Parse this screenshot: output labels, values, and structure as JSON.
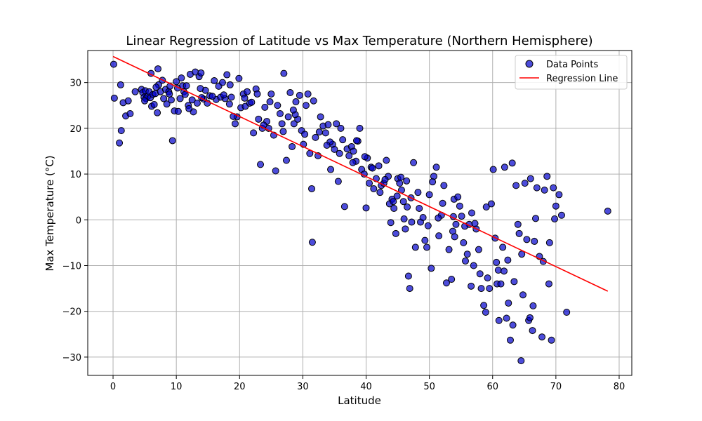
{
  "chart_data": {
    "type": "scatter",
    "title": "Linear Regression of Latitude vs Max Temperature (Northern Hemisphere)",
    "xlabel": "Latitude",
    "ylabel": "Max Temperature (°C)",
    "xlim": [
      -4,
      82
    ],
    "ylim": [
      -34,
      37
    ],
    "xticks": [
      0,
      10,
      20,
      30,
      40,
      50,
      60,
      70,
      80
    ],
    "yticks": [
      -30,
      -20,
      -10,
      0,
      10,
      20,
      30
    ],
    "grid": true,
    "legend_position": "top-right",
    "colors": {
      "points": "#0000cc",
      "point_edge": "#000000",
      "regression": "#ff0000",
      "grid": "#b0b0b0"
    },
    "series": [
      {
        "name": "Data Points",
        "kind": "scatter",
        "points": [
          [
            0.1,
            34.0
          ],
          [
            0.2,
            26.6
          ],
          [
            1.2,
            29.5
          ],
          [
            1.0,
            16.8
          ],
          [
            1.3,
            19.5
          ],
          [
            1.6,
            25.6
          ],
          [
            2.0,
            22.7
          ],
          [
            2.4,
            26.0
          ],
          [
            2.7,
            23.2
          ],
          [
            4.5,
            28.5
          ],
          [
            4.7,
            27.8
          ],
          [
            4.9,
            26.8
          ],
          [
            5.1,
            28.2
          ],
          [
            5.2,
            26.5
          ],
          [
            5.5,
            27.0
          ],
          [
            5.7,
            28.0
          ],
          [
            5.9,
            26.7
          ],
          [
            6.0,
            32.0
          ],
          [
            6.1,
            24.8
          ],
          [
            6.3,
            27.4
          ],
          [
            6.5,
            25.2
          ],
          [
            6.7,
            27.6
          ],
          [
            7.0,
            23.4
          ],
          [
            7.1,
            33.0
          ],
          [
            7.2,
            29.5
          ],
          [
            7.5,
            28.0
          ],
          [
            7.8,
            30.5
          ],
          [
            8.0,
            26.5
          ],
          [
            8.3,
            28.5
          ],
          [
            8.5,
            25.3
          ],
          [
            8.8,
            28.0
          ],
          [
            9.2,
            26.2
          ],
          [
            9.4,
            17.3
          ],
          [
            9.7,
            23.8
          ],
          [
            10.0,
            30.2
          ],
          [
            10.2,
            28.8
          ],
          [
            10.3,
            23.7
          ],
          [
            10.6,
            26.5
          ],
          [
            11.0,
            29.3
          ],
          [
            11.2,
            28.0
          ],
          [
            11.4,
            27.4
          ],
          [
            11.6,
            29.3
          ],
          [
            11.9,
            25.0
          ],
          [
            12.2,
            31.8
          ],
          [
            12.5,
            26.2
          ],
          [
            12.7,
            23.6
          ],
          [
            13.0,
            32.3
          ],
          [
            13.3,
            25.5
          ],
          [
            13.6,
            31.3
          ],
          [
            13.9,
            32.1
          ],
          [
            14.3,
            26.4
          ],
          [
            14.6,
            28.3
          ],
          [
            14.9,
            25.5
          ],
          [
            15.3,
            27.1
          ],
          [
            16.0,
            30.4
          ],
          [
            16.3,
            26.3
          ],
          [
            16.7,
            29.2
          ],
          [
            17.0,
            26.8
          ],
          [
            17.3,
            30.0
          ],
          [
            17.7,
            26.5
          ],
          [
            18.0,
            31.7
          ],
          [
            18.4,
            25.3
          ],
          [
            18.7,
            26.8
          ],
          [
            19.3,
            21.0
          ],
          [
            19.6,
            22.5
          ],
          [
            19.9,
            30.9
          ],
          [
            20.2,
            24.5
          ],
          [
            20.6,
            27.5
          ],
          [
            20.9,
            24.8
          ],
          [
            21.2,
            28.0
          ],
          [
            21.6,
            25.5
          ],
          [
            21.9,
            25.7
          ],
          [
            22.2,
            19.0
          ],
          [
            22.6,
            28.6
          ],
          [
            23.0,
            22.0
          ],
          [
            23.3,
            12.1
          ],
          [
            23.6,
            20.0
          ],
          [
            24.0,
            24.6
          ],
          [
            24.3,
            21.5
          ],
          [
            24.6,
            20.0
          ],
          [
            25.0,
            27.5
          ],
          [
            25.4,
            18.5
          ],
          [
            25.7,
            10.7
          ],
          [
            26.0,
            25.0
          ],
          [
            26.4,
            23.2
          ],
          [
            26.7,
            21.0
          ],
          [
            27.0,
            32.0
          ],
          [
            27.4,
            13.0
          ],
          [
            27.7,
            22.5
          ],
          [
            28.0,
            27.8
          ],
          [
            28.3,
            16.0
          ],
          [
            28.6,
            21.0
          ],
          [
            28.9,
            25.8
          ],
          [
            29.2,
            22.0
          ],
          [
            29.5,
            27.2
          ],
          [
            29.8,
            19.5
          ],
          [
            30.1,
            16.5
          ],
          [
            30.5,
            25.0
          ],
          [
            30.8,
            27.5
          ],
          [
            31.1,
            14.5
          ],
          [
            31.4,
            6.8
          ],
          [
            31.5,
            -4.9
          ],
          [
            31.7,
            26.0
          ],
          [
            32.0,
            18.0
          ],
          [
            32.4,
            14.0
          ],
          [
            32.8,
            22.5
          ],
          [
            33.2,
            20.5
          ],
          [
            33.6,
            19.0
          ],
          [
            34.0,
            20.8
          ],
          [
            34.4,
            11.0
          ],
          [
            34.7,
            16.5
          ],
          [
            35.0,
            15.4
          ],
          [
            35.3,
            21.0
          ],
          [
            35.6,
            8.4
          ],
          [
            36.0,
            20.0
          ],
          [
            36.3,
            17.5
          ],
          [
            36.6,
            2.9
          ],
          [
            37.0,
            15.5
          ],
          [
            37.3,
            14.0
          ],
          [
            37.7,
            16.0
          ],
          [
            38.0,
            15.0
          ],
          [
            38.4,
            12.8
          ],
          [
            38.7,
            17.2
          ],
          [
            39.0,
            20.0
          ],
          [
            39.3,
            11.0
          ],
          [
            39.7,
            10.0
          ],
          [
            40.0,
            2.6
          ],
          [
            40.2,
            13.5
          ],
          [
            40.5,
            8.0
          ],
          [
            40.8,
            11.5
          ],
          [
            41.2,
            6.8
          ],
          [
            41.6,
            9.0
          ],
          [
            42.0,
            11.8
          ],
          [
            42.4,
            7.5
          ],
          [
            42.8,
            8.0
          ],
          [
            43.2,
            13.0
          ],
          [
            43.5,
            9.5
          ],
          [
            43.7,
            3.5
          ],
          [
            43.9,
            -0.6
          ],
          [
            44.1,
            4.5
          ],
          [
            44.4,
            2.5
          ],
          [
            44.7,
            -3.0
          ],
          [
            45.0,
            9.0
          ],
          [
            45.3,
            8.0
          ],
          [
            45.6,
            6.5
          ],
          [
            45.9,
            4.0
          ],
          [
            46.2,
            -2.0
          ],
          [
            46.5,
            2.8
          ],
          [
            46.7,
            -12.3
          ],
          [
            46.9,
            -15.0
          ],
          [
            47.2,
            -0.5
          ],
          [
            47.5,
            12.5
          ],
          [
            47.8,
            -6.0
          ],
          [
            48.2,
            6.0
          ],
          [
            48.6,
            -0.5
          ],
          [
            49.0,
            0.5
          ],
          [
            49.3,
            -4.5
          ],
          [
            49.6,
            -6.0
          ],
          [
            50.0,
            5.5
          ],
          [
            50.3,
            -10.6
          ],
          [
            50.7,
            9.5
          ],
          [
            51.1,
            11.5
          ],
          [
            51.5,
            -3.5
          ],
          [
            51.9,
            1.0
          ],
          [
            52.3,
            7.5
          ],
          [
            52.7,
            -13.8
          ],
          [
            53.1,
            -6.5
          ],
          [
            53.5,
            -13.0
          ],
          [
            53.9,
            4.5
          ],
          [
            54.2,
            -1.0
          ],
          [
            54.5,
            5.0
          ],
          [
            54.8,
            3.0
          ],
          [
            55.1,
            0.8
          ],
          [
            55.4,
            -5.0
          ],
          [
            55.7,
            -9.0
          ],
          [
            56.0,
            -7.5
          ],
          [
            56.3,
            -1.0
          ],
          [
            56.7,
            1.5
          ],
          [
            57.0,
            -10.0
          ],
          [
            57.4,
            -2.0
          ],
          [
            57.8,
            -6.5
          ],
          [
            58.2,
            -15.0
          ],
          [
            58.6,
            -18.7
          ],
          [
            58.9,
            -20.2
          ],
          [
            59.2,
            -12.7
          ],
          [
            59.5,
            -15.0
          ],
          [
            59.8,
            3.5
          ],
          [
            60.1,
            11.0
          ],
          [
            60.4,
            -4.0
          ],
          [
            60.7,
            -14.0
          ],
          [
            61.0,
            -22.0
          ],
          [
            61.3,
            -14.0
          ],
          [
            61.6,
            -6.0
          ],
          [
            61.9,
            11.5
          ],
          [
            62.2,
            -21.5
          ],
          [
            62.5,
            -18.2
          ],
          [
            62.8,
            -26.3
          ],
          [
            63.1,
            12.4
          ],
          [
            63.4,
            -13.5
          ],
          [
            63.7,
            7.5
          ],
          [
            64.0,
            -1.0
          ],
          [
            64.2,
            -3.0
          ],
          [
            64.5,
            -30.8
          ],
          [
            64.8,
            -16.4
          ],
          [
            65.1,
            8.0
          ],
          [
            65.4,
            -4.3
          ],
          [
            65.7,
            -22.0
          ],
          [
            66.0,
            9.0
          ],
          [
            66.3,
            -24.2
          ],
          [
            66.6,
            -4.7
          ],
          [
            67.0,
            7.0
          ],
          [
            67.4,
            -8.0
          ],
          [
            67.8,
            -25.6
          ],
          [
            68.2,
            6.5
          ],
          [
            68.6,
            9.5
          ],
          [
            69.0,
            -5.0
          ],
          [
            69.3,
            -26.3
          ],
          [
            69.6,
            7.0
          ],
          [
            70.0,
            3.0
          ],
          [
            70.5,
            5.5
          ],
          [
            70.9,
            1.0
          ],
          [
            71.7,
            -20.2
          ],
          [
            78.2,
            1.9
          ],
          [
            5.0,
            26.0
          ],
          [
            6.8,
            29.0
          ],
          [
            8.9,
            27.5
          ],
          [
            10.8,
            31.0
          ],
          [
            12.0,
            24.3
          ],
          [
            14.0,
            26.7
          ],
          [
            15.7,
            27.0
          ],
          [
            17.5,
            27.3
          ],
          [
            19.0,
            22.6
          ],
          [
            20.8,
            26.6
          ],
          [
            22.8,
            27.5
          ],
          [
            24.8,
            25.8
          ],
          [
            26.9,
            19.3
          ],
          [
            28.8,
            23.0
          ],
          [
            30.3,
            18.7
          ],
          [
            32.6,
            19.2
          ],
          [
            34.3,
            17.0
          ],
          [
            35.8,
            14.5
          ],
          [
            37.9,
            12.5
          ],
          [
            39.8,
            13.8
          ],
          [
            41.0,
            11.3
          ],
          [
            43.0,
            8.8
          ],
          [
            44.9,
            5.2
          ],
          [
            46.4,
            8.5
          ],
          [
            48.4,
            2.5
          ],
          [
            50.5,
            8.3
          ],
          [
            52.1,
            3.6
          ],
          [
            53.7,
            -2.5
          ],
          [
            55.6,
            -1.4
          ],
          [
            57.2,
            -0.8
          ],
          [
            59.0,
            2.8
          ],
          [
            60.9,
            -11.0
          ],
          [
            62.4,
            -8.8
          ],
          [
            64.6,
            -7.5
          ],
          [
            66.4,
            -18.8
          ],
          [
            68.0,
            -9.1
          ],
          [
            69.8,
            0.2
          ],
          [
            3.5,
            28.0
          ],
          [
            9.0,
            29.2
          ],
          [
            13.8,
            28.7
          ],
          [
            18.5,
            29.5
          ],
          [
            23.8,
            20.7
          ],
          [
            28.5,
            24.0
          ],
          [
            33.8,
            16.3
          ],
          [
            38.5,
            17.3
          ],
          [
            42.2,
            6.0
          ],
          [
            46.0,
            0.2
          ],
          [
            49.8,
            -1.3
          ],
          [
            53.8,
            0.7
          ],
          [
            58.0,
            -11.8
          ],
          [
            61.8,
            -11.2
          ],
          [
            65.9,
            -21.4
          ],
          [
            68.9,
            -14.0
          ],
          [
            44.3,
            4.0
          ],
          [
            45.5,
            9.3
          ],
          [
            47.1,
            4.8
          ],
          [
            51.4,
            0.4
          ],
          [
            54.0,
            -3.7
          ],
          [
            56.6,
            -14.5
          ],
          [
            60.6,
            -9.3
          ],
          [
            63.2,
            -23.0
          ],
          [
            66.8,
            0.3
          ]
        ]
      },
      {
        "name": "Regression Line",
        "kind": "line",
        "points": [
          [
            0.0,
            35.7
          ],
          [
            78.2,
            -15.6
          ]
        ]
      }
    ]
  }
}
